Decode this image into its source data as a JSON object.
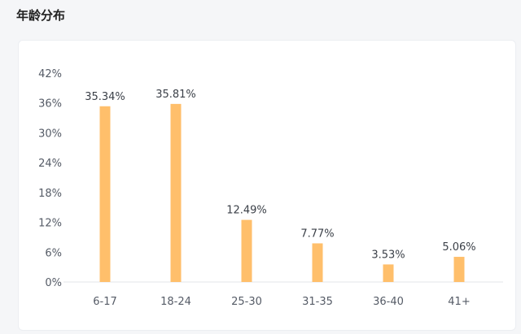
{
  "page": {
    "title": "年龄分布"
  },
  "chart_data": {
    "type": "bar",
    "categories": [
      "6-17",
      "18-24",
      "25-30",
      "31-35",
      "36-40",
      "41+"
    ],
    "values": [
      35.34,
      35.81,
      12.49,
      7.77,
      3.53,
      5.06
    ],
    "data_labels": [
      "35.34%",
      "35.81%",
      "12.49%",
      "7.77%",
      "3.53%",
      "5.06%"
    ],
    "y_ticks": [
      "0%",
      "6%",
      "12%",
      "18%",
      "24%",
      "30%",
      "36%",
      "42%"
    ],
    "ylim": [
      0,
      42
    ],
    "y_unit": "%",
    "grid": false,
    "legend": false,
    "bar_color": "#ffbf6b"
  }
}
